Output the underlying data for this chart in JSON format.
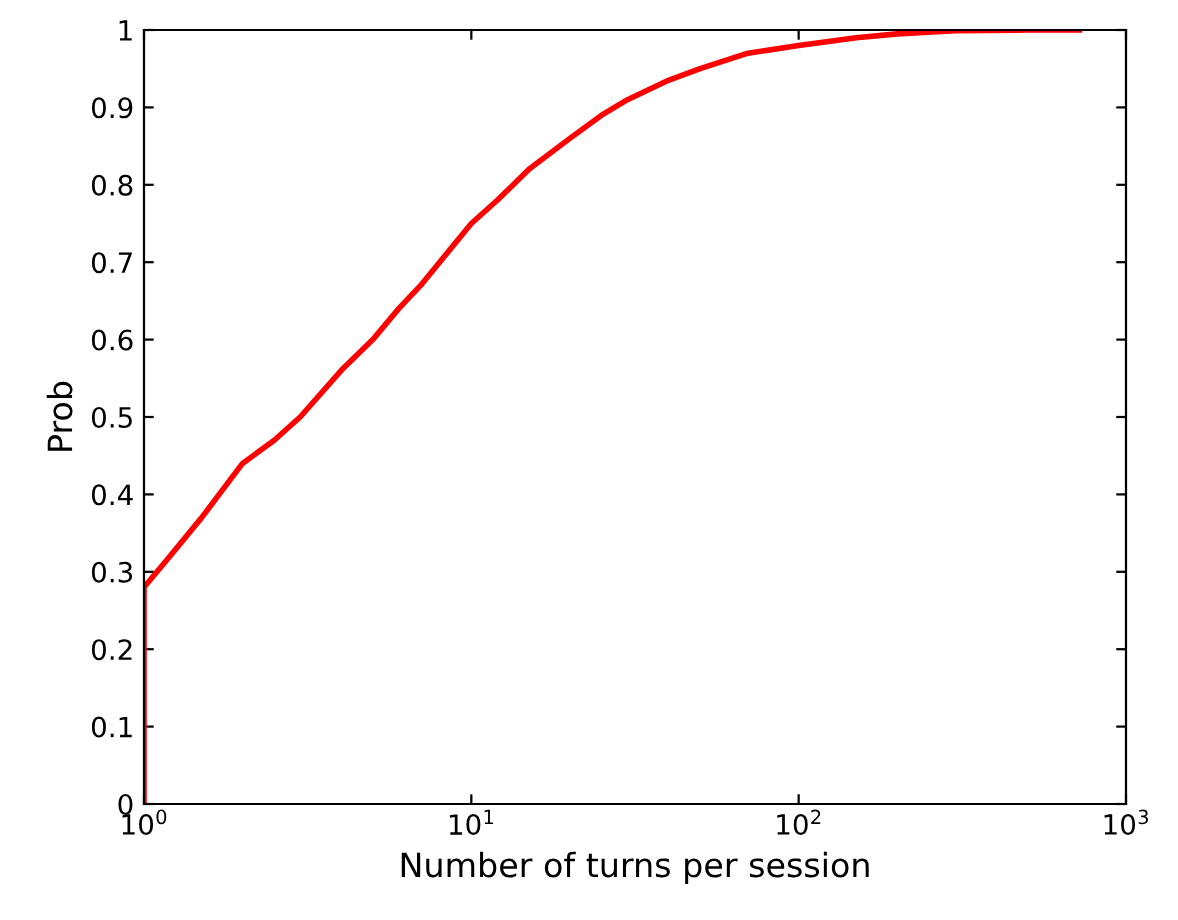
{
  "chart_data": {
    "type": "line",
    "xlabel": "Number of turns per session",
    "ylabel": "Prob",
    "log": "x",
    "series": [
      {
        "color": "#ff0000",
        "x": [
          1,
          1,
          1.2,
          1.5,
          2,
          2.5,
          3,
          4,
          5,
          6,
          7,
          8,
          10,
          12,
          15,
          20,
          25,
          30,
          40,
          50,
          70,
          100,
          150,
          200,
          300,
          500,
          720
        ],
        "values": [
          0,
          0.28,
          0.32,
          0.37,
          0.44,
          0.47,
          0.5,
          0.56,
          0.6,
          0.64,
          0.67,
          0.7,
          0.75,
          0.78,
          0.82,
          0.86,
          0.89,
          0.91,
          0.935,
          0.95,
          0.97,
          0.98,
          0.99,
          0.995,
          0.999,
          1.0,
          1.0
        ]
      }
    ],
    "xlim": [
      1,
      1000
    ],
    "xticks": [
      {
        "value": 1,
        "label": "10$^{0}$"
      },
      {
        "value": 10,
        "label": "10$^{1}$"
      },
      {
        "value": 100,
        "label": "10$^{2}$"
      },
      {
        "value": 1000,
        "label": "10$^{3}$"
      }
    ],
    "ylim": [
      0,
      1
    ],
    "yticks": [
      0,
      0.1,
      0.2,
      0.3,
      0.4,
      0.5,
      0.6,
      0.7,
      0.8,
      0.9,
      1
    ],
    "grid": false,
    "line_style": "solid",
    "marker": "none"
  }
}
